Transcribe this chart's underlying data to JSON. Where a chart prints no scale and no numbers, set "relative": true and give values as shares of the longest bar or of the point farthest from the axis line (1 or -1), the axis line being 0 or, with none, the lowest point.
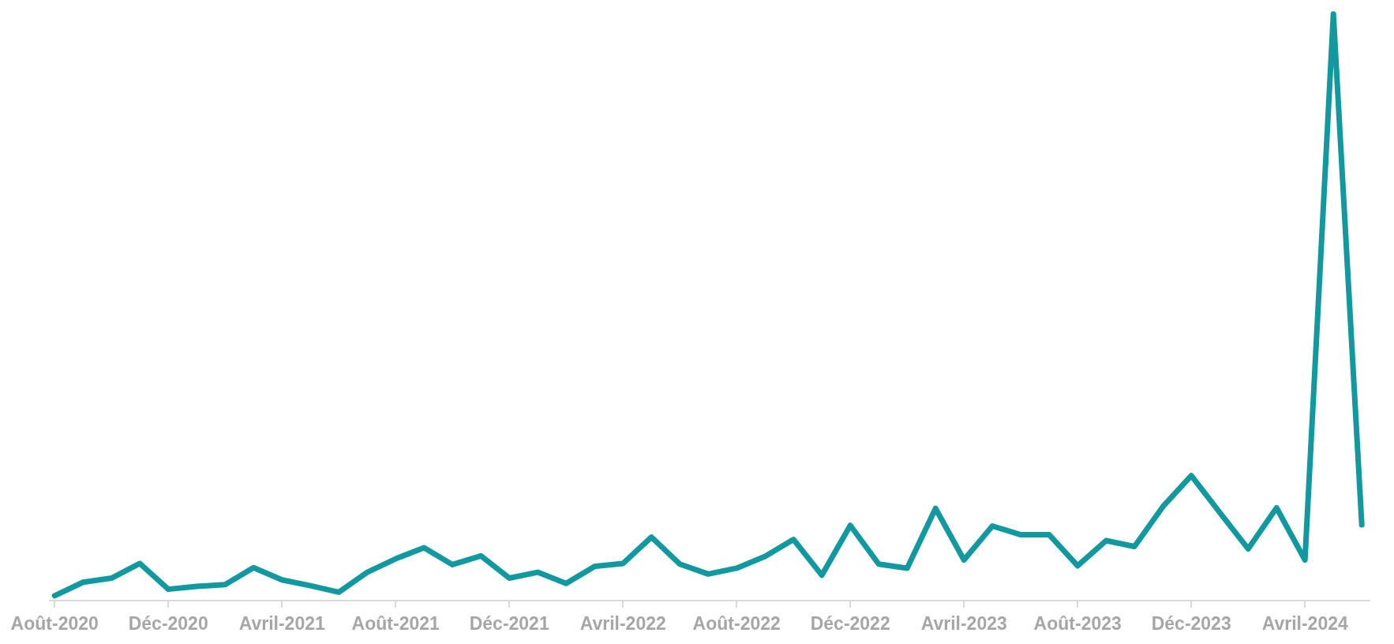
{
  "chart_data": {
    "type": "line",
    "relative": true,
    "grid": false,
    "marker": "none",
    "line_style": "solid",
    "categories": [
      "Août-2020",
      null,
      null,
      null,
      "Déc-2020",
      null,
      null,
      null,
      "Avril-2021",
      null,
      null,
      null,
      "Août-2021",
      null,
      null,
      null,
      "Déc-2021",
      null,
      null,
      null,
      "Avril-2022",
      null,
      null,
      null,
      "Août-2022",
      null,
      null,
      null,
      "Déc-2022",
      null,
      null,
      null,
      "Avril-2023",
      null,
      null,
      null,
      "Août-2023",
      null,
      null,
      null,
      "Déc-2023",
      null,
      null,
      null,
      "Avril-2024",
      null,
      null
    ],
    "series": [
      {
        "color": "#12989f",
        "values": [
          0.007,
          0.03,
          0.037,
          0.062,
          0.018,
          0.023,
          0.026,
          0.055,
          0.034,
          0.024,
          0.013,
          0.047,
          0.07,
          0.089,
          0.06,
          0.075,
          0.037,
          0.047,
          0.028,
          0.057,
          0.062,
          0.107,
          0.061,
          0.044,
          0.054,
          0.074,
          0.103,
          0.042,
          0.127,
          0.061,
          0.054,
          0.156,
          0.068,
          0.126,
          0.111,
          0.111,
          0.058,
          0.101,
          0.091,
          0.159,
          0.212,
          0.149,
          0.087,
          0.157,
          0.068,
          1.0,
          0.128
        ]
      }
    ]
  }
}
